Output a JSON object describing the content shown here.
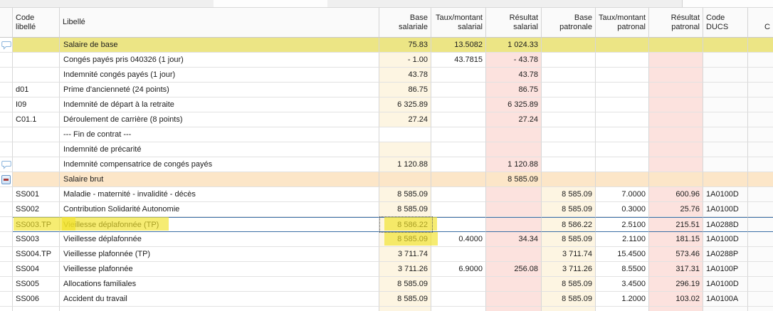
{
  "header": {
    "cols": [
      {
        "id": "gutter",
        "line1": "",
        "line2": ""
      },
      {
        "id": "code",
        "line1": "Code",
        "line2": "libellé"
      },
      {
        "id": "libelle",
        "line1": "Libellé",
        "line2": ""
      },
      {
        "id": "base_sal",
        "line1": "Base",
        "line2": "salariale"
      },
      {
        "id": "taux_sal",
        "line1": "Taux/montant",
        "line2": "salarial"
      },
      {
        "id": "res_sal",
        "line1": "Résultat",
        "line2": "salarial"
      },
      {
        "id": "base_pat",
        "line1": "Base",
        "line2": "patronale"
      },
      {
        "id": "taux_pat",
        "line1": "Taux/montant",
        "line2": "patronal"
      },
      {
        "id": "res_pat",
        "line1": "Résultat",
        "line2": "patronal"
      },
      {
        "id": "ducs",
        "line1": "Code",
        "line2": "DUCS"
      },
      {
        "id": "extra",
        "line1": "",
        "line2": "C"
      }
    ]
  },
  "rows": [
    {
      "type": "yellow",
      "gutter": "comment",
      "code": "",
      "label": "Salaire de base",
      "base_sal": "75.83",
      "taux_sal": "13.5082",
      "res_sal": "1 024.33",
      "base_pat": "",
      "taux_pat": "",
      "res_pat": "",
      "ducs": ""
    },
    {
      "code": "",
      "label": "Congés payés pris 040326 (1 jour)",
      "base_sal": "- 1.00",
      "taux_sal": "43.7815",
      "res_sal": "- 43.78",
      "base_pat": "",
      "taux_pat": "",
      "res_pat": "",
      "ducs": "",
      "base_cream": true
    },
    {
      "code": "",
      "label": "Indemnité congés payés (1 jour)",
      "base_sal": "43.78",
      "taux_sal": "",
      "res_sal": "43.78",
      "base_pat": "",
      "taux_pat": "",
      "res_pat": "",
      "ducs": "",
      "base_cream": true
    },
    {
      "code": "d01",
      "label": "Prime d'ancienneté  (24 points)",
      "base_sal": "86.75",
      "taux_sal": "",
      "res_sal": "86.75",
      "base_pat": "",
      "taux_pat": "",
      "res_pat": "",
      "ducs": "",
      "base_cream": true
    },
    {
      "code": "I09",
      "label": "Indemnité de départ à la retraite",
      "base_sal": "6 325.89",
      "taux_sal": "",
      "res_sal": "6 325.89",
      "base_pat": "",
      "taux_pat": "",
      "res_pat": "",
      "ducs": "",
      "base_cream": true
    },
    {
      "code": "C01.1",
      "label": "Déroulement de carrière (8 points)",
      "base_sal": "27.24",
      "taux_sal": "",
      "res_sal": "27.24",
      "base_pat": "",
      "taux_pat": "",
      "res_pat": "",
      "ducs": "",
      "base_cream": true
    },
    {
      "code": "",
      "label": "--- Fin de contrat ---",
      "base_sal": "",
      "taux_sal": "",
      "res_sal": "",
      "base_pat": "",
      "taux_pat": "",
      "res_pat": "",
      "ducs": ""
    },
    {
      "code": "",
      "label": "Indemnité de précarité",
      "base_sal": "",
      "taux_sal": "",
      "res_sal": "",
      "base_pat": "",
      "taux_pat": "",
      "res_pat": "",
      "ducs": "",
      "base_cream": true
    },
    {
      "gutter": "comment",
      "code": "",
      "label": "Indemnité compensatrice de congés payés",
      "base_sal": "1 120.88",
      "taux_sal": "",
      "res_sal": "1 120.88",
      "base_pat": "",
      "taux_pat": "",
      "res_pat": "",
      "ducs": "",
      "base_cream": true
    },
    {
      "type": "orange",
      "gutter": "collapse",
      "code": "",
      "label": "Salaire brut",
      "base_sal": "",
      "taux_sal": "",
      "res_sal": "8 585.09",
      "base_pat": "",
      "taux_pat": "",
      "res_pat": "",
      "ducs": ""
    },
    {
      "code": "SS001",
      "label": "Maladie - maternité - invalidité - décès",
      "base_sal": "8 585.09",
      "taux_sal": "",
      "res_sal": "",
      "base_pat": "8 585.09",
      "taux_pat": "7.0000",
      "res_pat": "600.96",
      "ducs": "1A0100D",
      "ss": true,
      "base_cream": true
    },
    {
      "code": "SS002",
      "label": "Contribution Solidarité Autonomie",
      "base_sal": "8 585.09",
      "taux_sal": "",
      "res_sal": "",
      "base_pat": "8 585.09",
      "taux_pat": "0.3000",
      "res_pat": "25.76",
      "ducs": "1A0100D",
      "ss": true,
      "base_cream": true
    },
    {
      "code": "SS003.TP",
      "label": "Vieillesse déplafonnée (TP)",
      "base_sal": "8 586.22",
      "taux_sal": "",
      "res_sal": "",
      "base_pat": "8 586.22",
      "taux_pat": "2.5100",
      "res_pat": "215.51",
      "ducs": "1A0288D",
      "ss": true,
      "base_cream": true,
      "selected": true
    },
    {
      "code": "SS003",
      "label": "Vieillesse déplafonnée",
      "base_sal": "8 585.09",
      "taux_sal": "0.4000",
      "res_sal": "34.34",
      "base_pat": "8 585.09",
      "taux_pat": "2.1100",
      "res_pat": "181.15",
      "ducs": "1A0100D",
      "ss": true,
      "base_cream": true
    },
    {
      "code": "SS004.TP",
      "label": "Vieillesse plafonnée (TP)",
      "base_sal": "3 711.74",
      "taux_sal": "",
      "res_sal": "",
      "base_pat": "3 711.74",
      "taux_pat": "15.4500",
      "res_pat": "573.46",
      "ducs": "1A0288P",
      "ss": true,
      "base_cream": true
    },
    {
      "code": "SS004",
      "label": "Vieillesse plafonnée",
      "base_sal": "3 711.26",
      "taux_sal": "6.9000",
      "res_sal": "256.08",
      "base_pat": "3 711.26",
      "taux_pat": "8.5500",
      "res_pat": "317.31",
      "ducs": "1A0100P",
      "ss": true,
      "base_cream": true
    },
    {
      "code": "SS005",
      "label": "Allocations familiales",
      "base_sal": "8 585.09",
      "taux_sal": "",
      "res_sal": "",
      "base_pat": "8 585.09",
      "taux_pat": "3.4500",
      "res_pat": "296.19",
      "ducs": "1A0100D",
      "ss": true,
      "base_cream": true
    },
    {
      "code": "SS006",
      "label": "Accident du travail",
      "base_sal": "8 585.09",
      "taux_sal": "",
      "res_sal": "",
      "base_pat": "8 585.09",
      "taux_pat": "1.2000",
      "res_pat": "103.02",
      "ducs": "1A0100A",
      "ss": true,
      "base_cream": true
    }
  ],
  "colors": {
    "row_highlight_yellow": "#ece585",
    "row_subtotal_orange": "#fce6c8",
    "editable_cell_cream": "#fdf5e2",
    "result_cell_pink": "#fce2de",
    "selection_blue": "#3a6ea5",
    "marker_highlight": "#f1e226",
    "grid_border": "#d7d7d7"
  },
  "icons": {
    "comment_rows": "comment-icon on 'Salaire de base' and 'Indemnité compensatrice de congés payés'",
    "collapse_row": "collapse-minus-icon on 'Salaire brut'"
  }
}
